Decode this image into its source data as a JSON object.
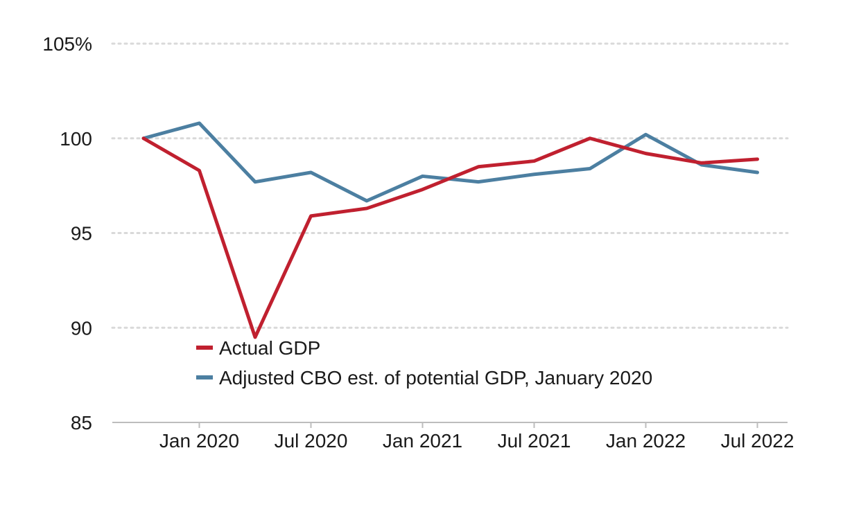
{
  "chart_data": {
    "type": "line",
    "title": "",
    "xlabel": "",
    "ylabel": "",
    "x": [
      "2019-10",
      "2020-01",
      "2020-04",
      "2020-07",
      "2020-10",
      "2021-01",
      "2021-04",
      "2021-07",
      "2021-10",
      "2022-01",
      "2022-04",
      "2022-07"
    ],
    "x_tick_labels": [
      {
        "x": "2020-01",
        "label": "Jan 2020"
      },
      {
        "x": "2020-07",
        "label": "Jul 2020"
      },
      {
        "x": "2021-01",
        "label": "Jan 2021"
      },
      {
        "x": "2021-07",
        "label": "Jul 2021"
      },
      {
        "x": "2022-01",
        "label": "Jan 2022"
      },
      {
        "x": "2022-07",
        "label": "Jul 2022"
      }
    ],
    "y_ticks": [
      {
        "value": 85,
        "label": "85"
      },
      {
        "value": 90,
        "label": "90"
      },
      {
        "value": 95,
        "label": "95"
      },
      {
        "value": 100,
        "label": "100"
      },
      {
        "value": 105,
        "label": "105%"
      }
    ],
    "ylim": [
      85,
      105
    ],
    "grid": "horizontal-dotted",
    "legend_position": "bottom-left-inside",
    "series": [
      {
        "name": "Actual GDP",
        "color": "#c0202f",
        "values": [
          100.0,
          98.3,
          89.5,
          95.9,
          96.3,
          97.3,
          98.5,
          98.8,
          100.0,
          99.2,
          98.7,
          98.9
        ]
      },
      {
        "name": "Adjusted CBO est. of potential GDP, January 2020",
        "color": "#4c7fa1",
        "values": [
          100.0,
          100.8,
          97.7,
          98.2,
          96.7,
          98.0,
          97.7,
          98.1,
          98.4,
          100.2,
          98.6,
          98.2
        ]
      }
    ]
  }
}
